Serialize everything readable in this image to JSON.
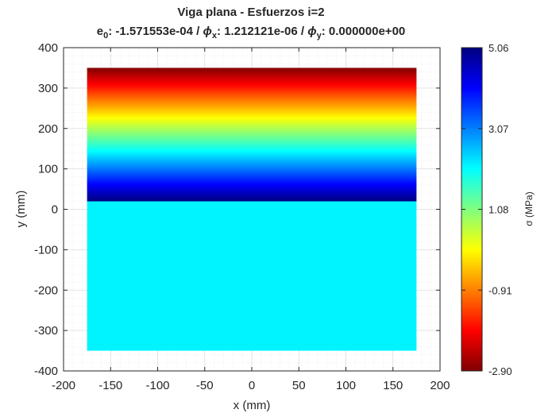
{
  "chart_data": {
    "type": "heatmap",
    "title_line1": "Viga plana  -  Esfuerzos i=2",
    "title_line2": {
      "e0_label": "e",
      "e0_sub": "0",
      "e0_value": ": -1.571553e-04  /  ",
      "phix_symbol": "ϕ",
      "phix_sub": "x",
      "phix_value": ": 1.212121e-06  /  ",
      "phiy_symbol": "ϕ",
      "phiy_sub": "y",
      "phiy_value": ": 0.000000e+00"
    },
    "xlabel": "x (mm)",
    "ylabel": "y (mm)",
    "xlim": [
      -200,
      200
    ],
    "ylim": [
      -400,
      400
    ],
    "xticks": [
      "-200",
      "-150",
      "-100",
      "-50",
      "0",
      "50",
      "100",
      "150",
      "200"
    ],
    "yticks": [
      "400",
      "300",
      "200",
      "100",
      "0",
      "-100",
      "-200",
      "-300",
      "-400"
    ],
    "grid": true,
    "minor_grid": true,
    "region": {
      "x": [
        -175,
        175
      ],
      "y": [
        -350,
        350
      ]
    },
    "stress_profile": {
      "y_neutral": 20,
      "y_top": 350,
      "value_at_neutral": -2.9,
      "value_at_top": 5.06,
      "value_below_neutral": 0.0
    },
    "colorbar": {
      "label": "σ (MPa)",
      "colormap": "jet",
      "range": [
        -2.9,
        5.06
      ],
      "ticks": [
        "5.06",
        "3.07",
        "1.08",
        "-0.91",
        "-2.90"
      ]
    }
  }
}
